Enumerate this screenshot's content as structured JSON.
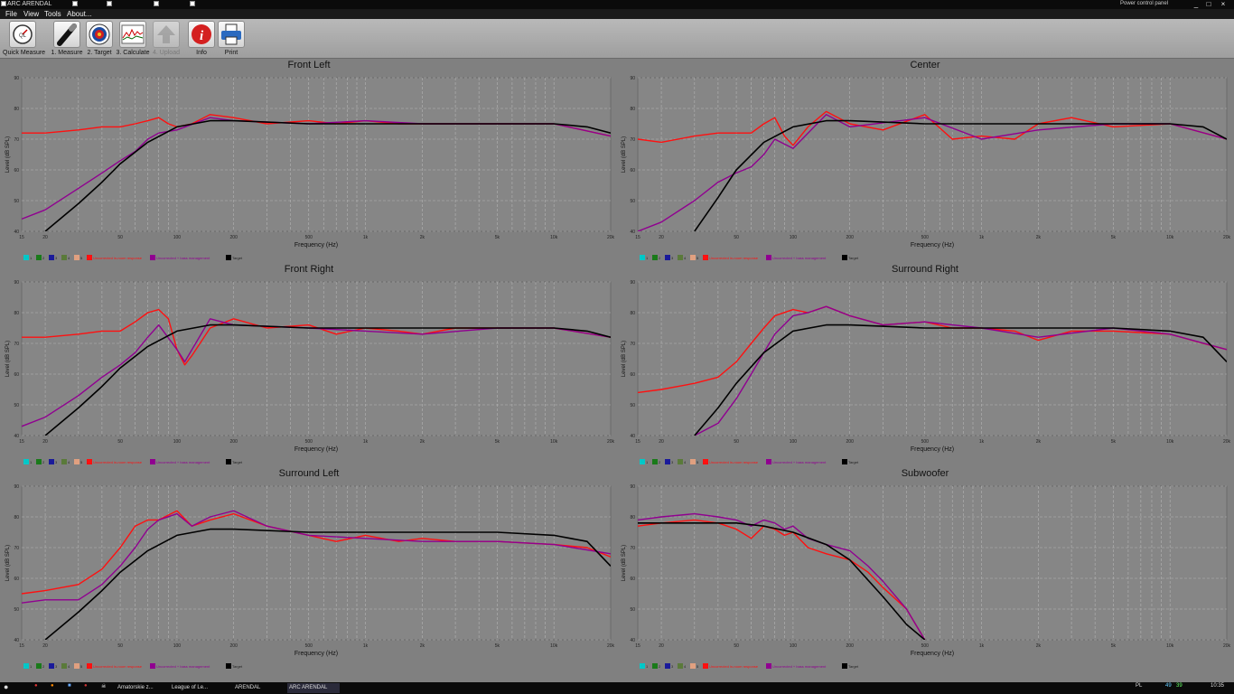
{
  "window": {
    "title": "ARC ARENDAL",
    "power_label": "Power control panel",
    "controls": [
      "_",
      "□",
      "×"
    ]
  },
  "menu": [
    "File",
    "View",
    "Tools",
    "About..."
  ],
  "toolbar": [
    {
      "label": "Quick Measure",
      "icon": "gauge-icon",
      "enabled": true
    },
    {
      "label": "1. Measure",
      "icon": "microphone-icon",
      "enabled": true
    },
    {
      "label": "2. Target",
      "icon": "target-icon",
      "enabled": true
    },
    {
      "label": "3. Calculate",
      "icon": "graph-icon",
      "enabled": true
    },
    {
      "label": "4. Upload",
      "icon": "upload-arrow-icon",
      "enabled": false
    },
    {
      "label": "Info",
      "icon": "info-icon",
      "enabled": true
    },
    {
      "label": "Print",
      "icon": "printer-icon",
      "enabled": true
    }
  ],
  "common": {
    "xlabel": "Frequency (Hz)",
    "ylabel": "Level (dB SPL)",
    "x_ticks": [
      "15",
      "20",
      "50",
      "100",
      "200",
      "500",
      "1k",
      "2k",
      "5k",
      "10k",
      "20k"
    ],
    "y_ticks": [
      "40",
      "50",
      "60",
      "70",
      "80",
      "90"
    ],
    "legend": [
      {
        "label": "1",
        "color": "#00c8c8"
      },
      {
        "label": "2",
        "color": "#1a7a1a"
      },
      {
        "label": "3",
        "color": "#1a1a9a"
      },
      {
        "label": "4",
        "color": "#5a7a3a"
      },
      {
        "label": "5",
        "color": "#e0a080"
      },
      {
        "label": "Uncorrected in-room response",
        "color": "#ff1010"
      },
      {
        "label": "Uncorrected + bass management",
        "color": "#900090"
      },
      {
        "label": "Target",
        "color": "#000000"
      }
    ]
  },
  "chart_data": [
    {
      "type": "line",
      "title": "Front Left",
      "xscale": "log",
      "xlim": [
        15,
        20000
      ],
      "ylim": [
        40,
        90
      ],
      "grid": true,
      "legend_placement": "bottom",
      "series": [
        {
          "name": "Uncorrected in-room response",
          "x": [
            15,
            20,
            30,
            40,
            50,
            60,
            70,
            80,
            90,
            100,
            120,
            150,
            200,
            300,
            500,
            700,
            1000,
            1500,
            2000,
            3000,
            5000,
            10000,
            20000
          ],
          "y": [
            72,
            72,
            73,
            74,
            74,
            75,
            76,
            77,
            75,
            74,
            75,
            78,
            77,
            75,
            76,
            75,
            76,
            75,
            75,
            75,
            75,
            75,
            71
          ]
        },
        {
          "name": "Uncorrected + bass management",
          "x": [
            15,
            20,
            30,
            40,
            50,
            60,
            70,
            80,
            100,
            150,
            200,
            500,
            1000,
            2000,
            5000,
            10000,
            20000
          ],
          "y": [
            44,
            47,
            54,
            59,
            63,
            66,
            70,
            72,
            73,
            77,
            76,
            75,
            76,
            75,
            75,
            75,
            71
          ]
        },
        {
          "name": "Target",
          "x": [
            20,
            30,
            40,
            50,
            70,
            100,
            150,
            200,
            500,
            1000,
            5000,
            10000,
            15000,
            20000
          ],
          "y": [
            40,
            49,
            56,
            62,
            69,
            74,
            76,
            76,
            75,
            75,
            75,
            75,
            74,
            72
          ]
        }
      ]
    },
    {
      "type": "line",
      "title": "Center",
      "xscale": "log",
      "xlim": [
        15,
        20000
      ],
      "ylim": [
        40,
        90
      ],
      "grid": true,
      "legend_placement": "bottom",
      "series": [
        {
          "name": "Uncorrected in-room response",
          "x": [
            15,
            20,
            30,
            40,
            50,
            60,
            70,
            80,
            90,
            100,
            120,
            150,
            200,
            300,
            500,
            700,
            1000,
            1500,
            2000,
            3000,
            5000,
            10000,
            20000
          ],
          "y": [
            70,
            69,
            71,
            72,
            72,
            72,
            75,
            77,
            71,
            68,
            74,
            79,
            75,
            73,
            78,
            70,
            71,
            70,
            75,
            77,
            74,
            75,
            70
          ]
        },
        {
          "name": "Uncorrected + bass management",
          "x": [
            15,
            20,
            30,
            40,
            50,
            60,
            70,
            80,
            100,
            150,
            200,
            500,
            1000,
            2000,
            5000,
            10000,
            20000
          ],
          "y": [
            40,
            43,
            50,
            56,
            59,
            61,
            65,
            70,
            67,
            78,
            74,
            77,
            70,
            73,
            75,
            75,
            70
          ]
        },
        {
          "name": "Target",
          "x": [
            30,
            40,
            50,
            70,
            100,
            150,
            200,
            500,
            1000,
            5000,
            10000,
            15000,
            20000
          ],
          "y": [
            40,
            51,
            60,
            69,
            74,
            76,
            76,
            75,
            75,
            75,
            75,
            74,
            70
          ]
        }
      ]
    },
    {
      "type": "line",
      "title": "Front Right",
      "xscale": "log",
      "xlim": [
        15,
        20000
      ],
      "ylim": [
        40,
        90
      ],
      "grid": true,
      "legend_placement": "bottom",
      "series": [
        {
          "name": "Uncorrected in-room response",
          "x": [
            15,
            20,
            30,
            40,
            50,
            60,
            70,
            80,
            90,
            100,
            110,
            120,
            150,
            200,
            300,
            500,
            700,
            1000,
            1500,
            2000,
            3000,
            5000,
            10000,
            20000
          ],
          "y": [
            72,
            72,
            73,
            74,
            74,
            77,
            80,
            81,
            78,
            68,
            63,
            66,
            75,
            78,
            75,
            76,
            73,
            75,
            74,
            73,
            75,
            75,
            75,
            72
          ]
        },
        {
          "name": "Uncorrected + bass management",
          "x": [
            15,
            20,
            30,
            40,
            50,
            60,
            70,
            80,
            100,
            110,
            150,
            200,
            500,
            1000,
            2000,
            5000,
            10000,
            20000
          ],
          "y": [
            43,
            46,
            53,
            59,
            63,
            67,
            72,
            76,
            68,
            64,
            78,
            76,
            75,
            74,
            73,
            75,
            75,
            72
          ]
        },
        {
          "name": "Target",
          "x": [
            20,
            30,
            40,
            50,
            70,
            100,
            150,
            200,
            500,
            1000,
            5000,
            10000,
            15000,
            20000
          ],
          "y": [
            40,
            49,
            56,
            62,
            69,
            74,
            76,
            76,
            75,
            75,
            75,
            75,
            74,
            72
          ]
        }
      ]
    },
    {
      "type": "line",
      "title": "Surround Right",
      "xscale": "log",
      "xlim": [
        15,
        20000
      ],
      "ylim": [
        40,
        90
      ],
      "grid": true,
      "legend_placement": "bottom",
      "series": [
        {
          "name": "Uncorrected in-room response",
          "x": [
            15,
            20,
            30,
            40,
            50,
            60,
            70,
            80,
            100,
            120,
            150,
            200,
            300,
            500,
            700,
            1000,
            1500,
            2000,
            3000,
            5000,
            10000,
            15000,
            20000
          ],
          "y": [
            54,
            55,
            57,
            59,
            64,
            70,
            75,
            79,
            81,
            80,
            82,
            79,
            76,
            77,
            75,
            75,
            74,
            71,
            74,
            74,
            73,
            70,
            68
          ]
        },
        {
          "name": "Uncorrected + bass management",
          "x": [
            30,
            40,
            50,
            60,
            70,
            80,
            100,
            120,
            150,
            200,
            300,
            500,
            1000,
            2000,
            5000,
            10000,
            20000
          ],
          "y": [
            40,
            44,
            52,
            60,
            67,
            73,
            79,
            80,
            82,
            79,
            76,
            77,
            75,
            72,
            75,
            73,
            68
          ]
        },
        {
          "name": "Target",
          "x": [
            30,
            40,
            50,
            70,
            100,
            150,
            200,
            500,
            1000,
            5000,
            10000,
            15000,
            20000
          ],
          "y": [
            40,
            49,
            57,
            67,
            74,
            76,
            76,
            75,
            75,
            75,
            74,
            72,
            64
          ]
        }
      ]
    },
    {
      "type": "line",
      "title": "Surround Left",
      "xscale": "log",
      "xlim": [
        15,
        20000
      ],
      "ylim": [
        40,
        90
      ],
      "grid": true,
      "legend_placement": "bottom",
      "series": [
        {
          "name": "Uncorrected in-room response",
          "x": [
            15,
            20,
            30,
            40,
            50,
            60,
            70,
            80,
            100,
            120,
            150,
            200,
            300,
            500,
            700,
            1000,
            1500,
            2000,
            3000,
            5000,
            10000,
            15000,
            20000
          ],
          "y": [
            55,
            56,
            58,
            63,
            70,
            77,
            79,
            79,
            82,
            77,
            79,
            81,
            77,
            74,
            72,
            74,
            72,
            73,
            72,
            72,
            71,
            70,
            67
          ]
        },
        {
          "name": "Uncorrected + bass management",
          "x": [
            15,
            20,
            30,
            40,
            50,
            60,
            70,
            80,
            100,
            120,
            150,
            200,
            300,
            500,
            1000,
            2000,
            5000,
            10000,
            20000
          ],
          "y": [
            52,
            53,
            53,
            58,
            64,
            70,
            76,
            79,
            81,
            77,
            80,
            82,
            77,
            74,
            73,
            72,
            72,
            71,
            68
          ]
        },
        {
          "name": "Target",
          "x": [
            20,
            30,
            40,
            50,
            70,
            100,
            150,
            200,
            500,
            1000,
            5000,
            10000,
            15000,
            20000
          ],
          "y": [
            40,
            49,
            56,
            62,
            69,
            74,
            76,
            76,
            75,
            75,
            75,
            74,
            72,
            64
          ]
        }
      ]
    },
    {
      "type": "line",
      "title": "Subwoofer",
      "xscale": "log",
      "xlim": [
        15,
        20000
      ],
      "ylim": [
        40,
        90
      ],
      "grid": true,
      "legend_placement": "bottom",
      "series": [
        {
          "name": "Uncorrected in-room response",
          "x": [
            15,
            20,
            30,
            40,
            50,
            60,
            70,
            80,
            90,
            100,
            120,
            150,
            200,
            250,
            300,
            400,
            500
          ],
          "y": [
            77,
            78,
            79,
            78,
            76,
            73,
            77,
            76,
            74,
            75,
            70,
            68,
            66,
            62,
            57,
            50,
            40
          ]
        },
        {
          "name": "Uncorrected + bass management",
          "x": [
            15,
            20,
            30,
            40,
            50,
            60,
            70,
            80,
            90,
            100,
            120,
            150,
            200,
            250,
            300,
            400,
            500
          ],
          "y": [
            79,
            80,
            81,
            80,
            79,
            77,
            79,
            78,
            76,
            77,
            73,
            71,
            69,
            64,
            59,
            50,
            40
          ]
        },
        {
          "name": "Target",
          "x": [
            15,
            30,
            50,
            70,
            100,
            150,
            200,
            300,
            400,
            500
          ],
          "y": [
            78,
            78,
            78,
            77,
            75,
            71,
            66,
            54,
            45,
            40
          ]
        }
      ]
    }
  ],
  "taskbar": {
    "items": [
      "Amatorskie z...",
      "League of Le...",
      "ARENDAL",
      "ARC ARENDAL"
    ],
    "tray": {
      "lang": "PL",
      "num1": "49",
      "num2": "39",
      "clock": "10:35"
    }
  }
}
